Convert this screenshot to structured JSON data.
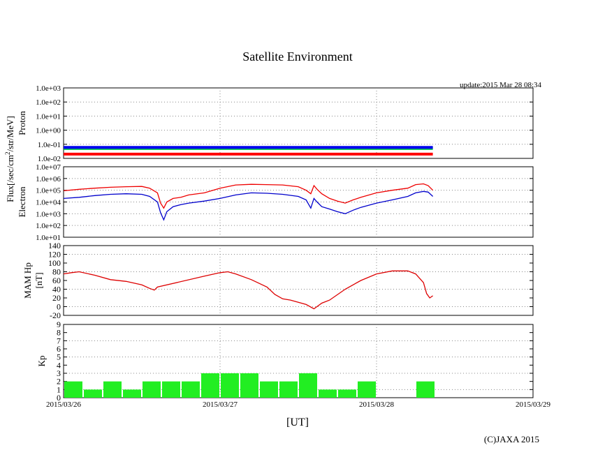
{
  "title": "Satellite Environment",
  "update_text": "update:2015 Mar 28 08:34",
  "copyright": "(C)JAXA 2015",
  "flux_label_prefix": "Flux[/sec/cm",
  "flux_label_sup": "2",
  "flux_label_suffix": "/str/MeV]",
  "chart_data": [
    {
      "id": "proton",
      "type": "line",
      "ylabel": "Proton",
      "yscale": "log",
      "ylim": [
        0.01,
        1000
      ],
      "yticks": [
        "1.0e-02",
        "1.0e-01",
        "1.0e+00",
        "1.0e+01",
        "1.0e+02",
        "1.0e+03"
      ],
      "xlim": [
        "2015/03/26",
        "2015/03/29"
      ],
      "grid": "dotted",
      "series": [
        {
          "color": "#ff0000",
          "x": [
            0,
            0.5,
            1.0,
            1.5,
            2.0,
            2.36
          ],
          "y": [
            0.02,
            0.02,
            0.02,
            0.02,
            0.02,
            0.02
          ]
        },
        {
          "color": "#00cc44",
          "x": [
            0,
            0.5,
            1.0,
            1.5,
            2.0,
            2.36
          ],
          "y": [
            0.05,
            0.05,
            0.05,
            0.05,
            0.05,
            0.05
          ]
        },
        {
          "color": "#0000ee",
          "x": [
            0,
            0.5,
            1.0,
            1.5,
            2.0,
            2.36
          ],
          "y": [
            0.06,
            0.06,
            0.06,
            0.06,
            0.06,
            0.06
          ]
        }
      ]
    },
    {
      "id": "electron",
      "type": "line",
      "ylabel": "Electron",
      "yscale": "log",
      "ylim": [
        10,
        10000000
      ],
      "yticks": [
        "1.0e+01",
        "1.0e+02",
        "1.0e+03",
        "1.0e+04",
        "1.0e+05",
        "1.0e+06",
        "1.0e+07"
      ],
      "xlim": [
        "2015/03/26",
        "2015/03/29"
      ],
      "grid": "dotted",
      "series": [
        {
          "color": "#ee0000",
          "x": [
            0,
            0.1,
            0.2,
            0.3,
            0.4,
            0.5,
            0.55,
            0.6,
            0.62,
            0.64,
            0.66,
            0.7,
            0.75,
            0.8,
            0.9,
            1.0,
            1.1,
            1.2,
            1.3,
            1.4,
            1.5,
            1.55,
            1.58,
            1.6,
            1.62,
            1.65,
            1.7,
            1.75,
            1.8,
            1.85,
            1.9,
            2.0,
            2.1,
            2.2,
            2.25,
            2.3,
            2.33,
            2.36
          ],
          "y": [
            90000,
            120000,
            150000,
            180000,
            200000,
            210000,
            150000,
            60000,
            8000,
            3000,
            10000,
            20000,
            25000,
            40000,
            60000,
            150000,
            280000,
            320000,
            300000,
            280000,
            200000,
            100000,
            50000,
            250000,
            120000,
            50000,
            20000,
            12000,
            8000,
            15000,
            25000,
            60000,
            100000,
            150000,
            300000,
            350000,
            250000,
            100000
          ]
        },
        {
          "color": "#0000cc",
          "x": [
            0,
            0.1,
            0.2,
            0.3,
            0.4,
            0.5,
            0.55,
            0.6,
            0.62,
            0.64,
            0.66,
            0.7,
            0.75,
            0.8,
            0.9,
            1.0,
            1.1,
            1.2,
            1.3,
            1.4,
            1.5,
            1.55,
            1.58,
            1.6,
            1.62,
            1.65,
            1.7,
            1.75,
            1.8,
            1.85,
            1.9,
            2.0,
            2.1,
            2.2,
            2.25,
            2.3,
            2.33,
            2.36
          ],
          "y": [
            20000,
            25000,
            35000,
            45000,
            50000,
            45000,
            30000,
            10000,
            1200,
            300,
            1500,
            4000,
            6000,
            8000,
            12000,
            20000,
            40000,
            60000,
            55000,
            45000,
            30000,
            15000,
            3000,
            20000,
            10000,
            4000,
            2500,
            1500,
            1000,
            2000,
            3500,
            8000,
            15000,
            30000,
            60000,
            80000,
            70000,
            30000
          ]
        }
      ]
    },
    {
      "id": "mam-hp",
      "type": "line",
      "ylabel": "MAM Hp",
      "yunit": "[nT]",
      "yscale": "linear",
      "ylim": [
        -20,
        140
      ],
      "yticks": [
        "-20",
        "0",
        "20",
        "40",
        "60",
        "80",
        "100",
        "120",
        "140"
      ],
      "xlim": [
        "2015/03/26",
        "2015/03/29"
      ],
      "grid": "dotted",
      "series": [
        {
          "color": "#dd0000",
          "x": [
            0,
            0.05,
            0.1,
            0.2,
            0.3,
            0.4,
            0.5,
            0.55,
            0.58,
            0.6,
            0.9,
            1.0,
            1.05,
            1.1,
            1.2,
            1.3,
            1.35,
            1.4,
            1.45,
            1.5,
            1.55,
            1.6,
            1.65,
            1.7,
            1.8,
            1.9,
            2.0,
            2.1,
            2.2,
            2.25,
            2.3,
            2.32,
            2.34,
            2.36
          ],
          "y": [
            75,
            78,
            80,
            72,
            62,
            58,
            50,
            42,
            38,
            45,
            70,
            78,
            80,
            75,
            62,
            45,
            28,
            18,
            15,
            10,
            5,
            -5,
            8,
            15,
            40,
            60,
            75,
            82,
            82,
            75,
            55,
            30,
            20,
            25
          ]
        }
      ]
    },
    {
      "id": "kp",
      "type": "bar",
      "ylabel": "Kp",
      "yscale": "linear",
      "ylim": [
        0,
        9
      ],
      "yticks": [
        "0",
        "1",
        "2",
        "3",
        "4",
        "5",
        "6",
        "7",
        "8",
        "9"
      ],
      "xlim": [
        "2015/03/26",
        "2015/03/29"
      ],
      "grid": "dotted",
      "color": "#22ee22",
      "x": [
        0,
        0.125,
        0.25,
        0.375,
        0.5,
        0.625,
        0.75,
        0.875,
        1.0,
        1.125,
        1.25,
        1.375,
        1.5,
        1.625,
        1.75,
        1.875,
        2.0,
        2.125,
        2.25
      ],
      "values": [
        2,
        1,
        2,
        1,
        2,
        2,
        2,
        3,
        3,
        3,
        2,
        2,
        3,
        1,
        1,
        2,
        null,
        null,
        2
      ],
      "xticks": [
        "2015/03/26",
        "2015/03/27",
        "2015/03/28",
        "2015/03/29"
      ],
      "xlabel": "[UT]"
    }
  ]
}
